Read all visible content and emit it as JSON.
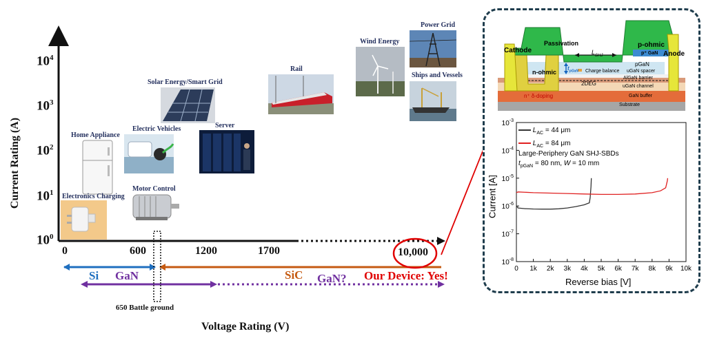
{
  "axes": {
    "y_label": "Current Rating (A)",
    "x_label": "Voltage Rating (V)",
    "y_ticks": [
      {
        "base": "10",
        "exp": "0"
      },
      {
        "base": "10",
        "exp": "1"
      },
      {
        "base": "10",
        "exp": "2"
      },
      {
        "base": "10",
        "exp": "3"
      },
      {
        "base": "10",
        "exp": "4"
      }
    ],
    "x_ticks": [
      "0",
      "600",
      "1200",
      "1700",
      "10,000"
    ]
  },
  "applications": [
    {
      "id": "electronics-charging",
      "label": "Electronics Charging"
    },
    {
      "id": "home-appliance",
      "label": "Home Appliance"
    },
    {
      "id": "motor-control",
      "label": "Motor Control"
    },
    {
      "id": "electric-vehicles",
      "label": "Electric Vehicles"
    },
    {
      "id": "server",
      "label": "Server"
    },
    {
      "id": "solar-energy",
      "label": "Solar Energy/Smart Grid"
    },
    {
      "id": "rail",
      "label": "Rail"
    },
    {
      "id": "wind-energy",
      "label": "Wind Energy"
    },
    {
      "id": "power-grid",
      "label": "Power Grid"
    },
    {
      "id": "ships-and-vessels",
      "label": "Ships and Vessels"
    }
  ],
  "ranges": {
    "si": "Si",
    "gan": "GaN",
    "sic": "SiC",
    "gan_future": "GaN?",
    "our_device": "Our Device: Yes!",
    "battleground": "650 Battle ground"
  },
  "colors": {
    "si": "#1f6fbf",
    "gan": "#7030a0",
    "sic": "#c55a11",
    "highlight": "#e00000",
    "label_navy": "#24305e"
  },
  "device": {
    "labels": {
      "cathode": "Cathode",
      "passivation": "Passivation",
      "l_shj_main": "L",
      "l_shj_sub": "SHJ",
      "p_ohmic": "p-ohmic",
      "p_plus_gan": "p⁺ GaN",
      "anode": "Anode",
      "pgan": "pGaN",
      "n_ohmic": "n-ohmic",
      "t_pgan_main": "t",
      "t_pgan_sub": "pGaN",
      "charge_balance": "Charge balance",
      "ugan_spacer": "uGaN spacer",
      "algan_barrier": "AlGaN barrier",
      "two_deg": "2DEG",
      "ugan_channel": "uGaN channel",
      "delta_doping": "n⁺ δ-doping",
      "gan_buffer": "GaN buffer",
      "substrate": "Substrate"
    }
  },
  "chart_data": {
    "type": "line",
    "title": "",
    "xlabel": "Reverse bias [V]",
    "ylabel": "Current [A]",
    "xlim": [
      0,
      10000
    ],
    "ylim": [
      1e-08,
      0.001
    ],
    "y_scale": "log",
    "x_ticks": [
      "0",
      "1k",
      "2k",
      "3k",
      "4k",
      "5k",
      "6k",
      "7k",
      "8k",
      "9k",
      "10k"
    ],
    "y_ticks": [
      {
        "base": "10",
        "exp": "-8"
      },
      {
        "base": "10",
        "exp": "-7"
      },
      {
        "base": "10",
        "exp": "-6"
      },
      {
        "base": "10",
        "exp": "-5"
      },
      {
        "base": "10",
        "exp": "-4"
      },
      {
        "base": "10",
        "exp": "-3"
      }
    ],
    "annotation_lines": [
      "Large-Periphery GaN SHJ-SBDs",
      {
        "t": "t",
        "sub": "pGaN",
        "rest": " = 80 nm, ",
        "w": "W",
        "w_rest": " = 10 mm"
      }
    ],
    "legend_position": "top-left",
    "series": [
      {
        "name": "L_AC = 44 μm",
        "legend_main": "L",
        "legend_sub": "AC",
        "legend_rest": " = 44 μm",
        "color": "#333333",
        "x": [
          0,
          100,
          500,
          1000,
          1500,
          2000,
          2500,
          3000,
          3500,
          4000,
          4300,
          4350,
          4400,
          4420
        ],
        "y": [
          1e-06,
          8.5e-07,
          8e-07,
          7.8e-07,
          7.7e-07,
          7.7e-07,
          7.9e-07,
          8.5e-07,
          9.5e-07,
          1.1e-06,
          1.3e-06,
          2e-06,
          5e-06,
          1e-05
        ]
      },
      {
        "name": "L_AC = 84 μm",
        "legend_main": "L",
        "legend_sub": "AC",
        "legend_rest": " = 84 μm",
        "color": "#e02020",
        "x": [
          0,
          100,
          1000,
          2000,
          3000,
          4000,
          5000,
          6000,
          7000,
          8000,
          8500,
          8800,
          8850,
          8900,
          8920
        ],
        "y": [
          3e-06,
          3.2e-06,
          3e-06,
          2.9e-06,
          2.8e-06,
          2.7e-06,
          2.6e-06,
          2.6e-06,
          2.7e-06,
          3e-06,
          3.5e-06,
          4.5e-06,
          6e-06,
          8e-06,
          1e-05
        ]
      }
    ]
  }
}
